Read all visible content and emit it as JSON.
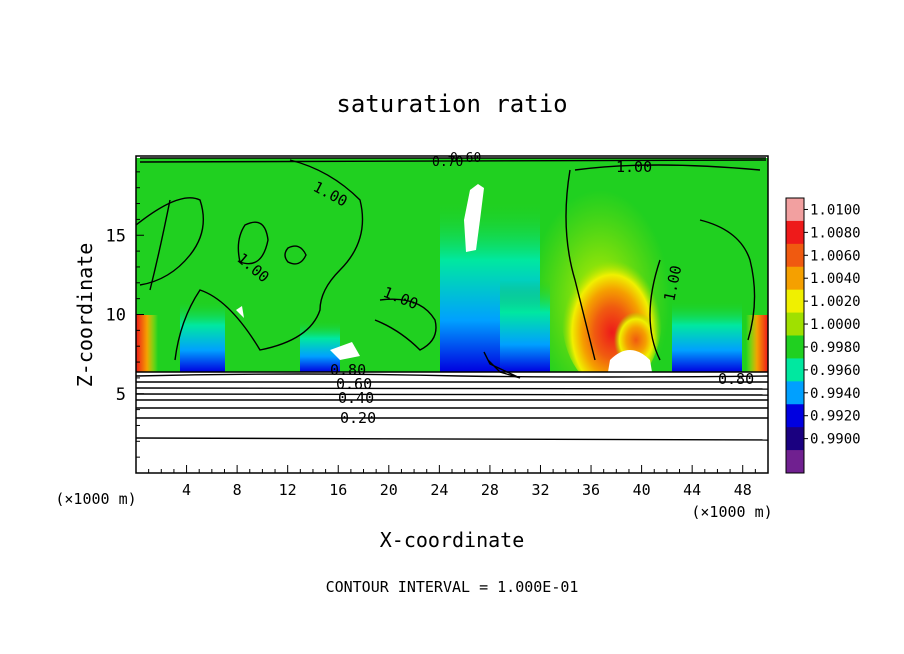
{
  "chart_data": {
    "type": "heatmap",
    "title": "saturation ratio",
    "xlabel": "X-coordinate",
    "ylabel": "Z-coordinate",
    "x_unit_label": "(×1000 m)",
    "z_unit_label": "(×1000 m)",
    "xlim": [
      0,
      50
    ],
    "ylim": [
      0,
      20
    ],
    "x_ticks": [
      4,
      8,
      12,
      16,
      20,
      24,
      28,
      32,
      36,
      40,
      44,
      48
    ],
    "y_ticks": [
      5,
      10,
      15
    ],
    "footer": "CONTOUR INTERVAL = 1.000E-01",
    "colorbar": {
      "levels": [
        "1.0100",
        "1.0080",
        "1.0060",
        "1.0040",
        "1.0020",
        "1.0000",
        "0.9980",
        "0.9960",
        "0.9940",
        "0.9920",
        "0.9900"
      ],
      "colors": [
        "#f2a0a0",
        "#ee1a1a",
        "#f05a10",
        "#f5a000",
        "#f0f000",
        "#a0e000",
        "#20d020",
        "#00e8a0",
        "#00a0ff",
        "#0000e0",
        "#1a0080",
        "#702090"
      ]
    },
    "contour_labels": [
      "0.60",
      "0.70",
      "1.00",
      "1.00",
      "1.00",
      "1.00",
      "1.00",
      "0.80",
      "0.60",
      "0.40",
      "0.20",
      "0.80"
    ]
  }
}
